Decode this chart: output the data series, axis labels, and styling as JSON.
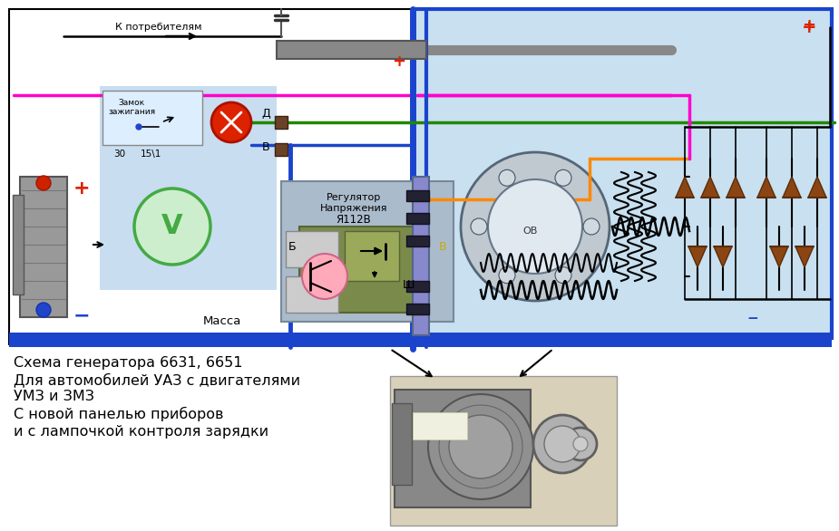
{
  "title_lines": [
    "Схема генератора 6631, 6651",
    "Для автомобилей УАЗ с двигателями",
    "УМЗ и ЗМЗ",
    "С новой панелью приборов",
    "и с лампочкой контроля зарядки"
  ],
  "bg_color": "#ffffff",
  "light_blue": "#c8e0f0",
  "blue_wire": "#1a44cc",
  "red_wire": "#dd2200",
  "green_wire": "#228800",
  "pink_wire": "#ff00cc",
  "orange_wire": "#ff8800",
  "gray_bus": "#888888",
  "dark_brown": "#8B4513",
  "olive": "#6b7a3a",
  "light_panel": "#c8ddf0",
  "purple_conn": "#8888cc"
}
